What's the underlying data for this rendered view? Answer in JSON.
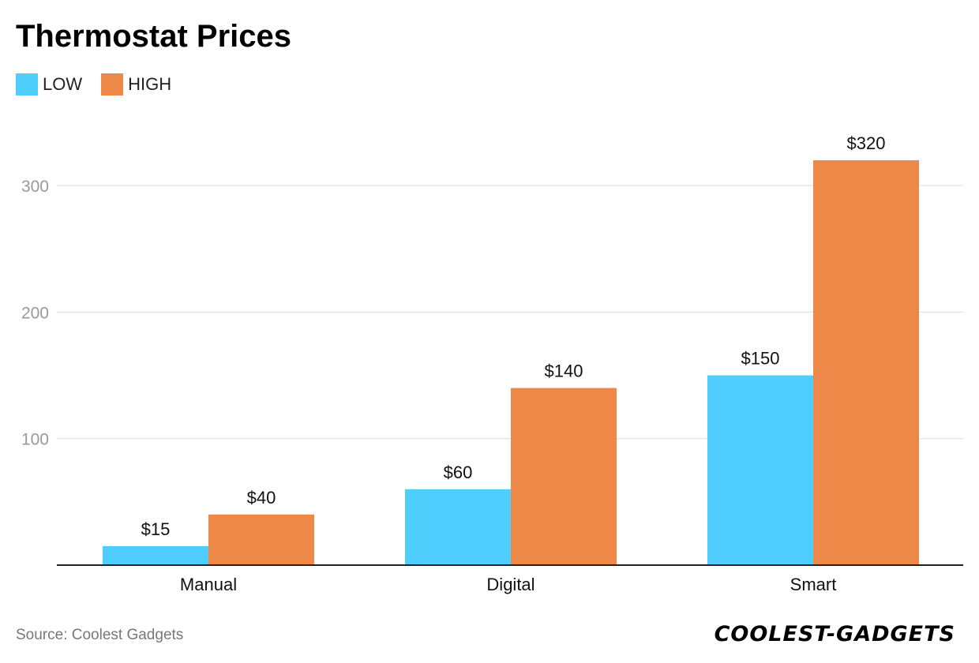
{
  "chart_data": {
    "type": "bar",
    "title": "Thermostat Prices",
    "categories": [
      "Manual",
      "Digital",
      "Smart"
    ],
    "series": [
      {
        "name": "LOW",
        "color": "#4FCDFC",
        "values": [
          15,
          60,
          150
        ],
        "labels": [
          "$15",
          "$60",
          "$150"
        ]
      },
      {
        "name": "HIGH",
        "color": "#EE8849",
        "values": [
          40,
          140,
          320
        ],
        "labels": [
          "$40",
          "$140",
          "$320"
        ]
      }
    ],
    "yticks": [
      100,
      200,
      300
    ],
    "ylim": [
      0,
      340
    ],
    "grid": true,
    "legend_position": "top-left",
    "xlabel": "",
    "ylabel": ""
  },
  "footer": {
    "source": "Source: Coolest Gadgets",
    "brand": "COOLEST-GADGETS"
  }
}
